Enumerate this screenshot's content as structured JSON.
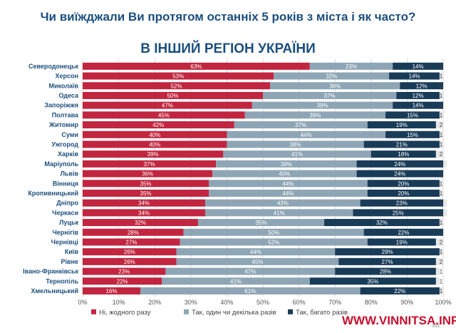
{
  "question": "Чи виїжджали Ви протягом останніх 5 років з міста і як часто?",
  "subtitle": "В ІНШИЙ РЕГІОН УКРАЇНИ",
  "watermark": "WWW.VINNITSA.INFO",
  "page_number": "391",
  "colors": {
    "never": "#c1253f",
    "once_or_few": "#8ea5b5",
    "many": "#183b58",
    "fourth": "#e6e6e6",
    "title": "#1c4f7e"
  },
  "chart_data": {
    "type": "bar",
    "orientation": "horizontal",
    "stacked": true,
    "title": "В ІНШИЙ РЕГІОН УКРАЇНИ",
    "xlim": [
      0,
      100
    ],
    "x_ticks": [
      "0%",
      "10%",
      "20%",
      "30%",
      "40%",
      "50%",
      "60%",
      "70%",
      "80%",
      "90%",
      "100%"
    ],
    "legend_position": "bottom",
    "categories": [
      "Северодонецьк",
      "Херсон",
      "Миколаїв",
      "Одеса",
      "Запоріжжя",
      "Полтава",
      "Житомир",
      "Суми",
      "Ужгород",
      "Харків",
      "Маріуполь",
      "Львів",
      "Вінниця",
      "Кропивницький",
      "Дніпро",
      "Черкаси",
      "Луцьк",
      "Чернігів",
      "Чернівці",
      "Київ",
      "Рівне",
      "Івано-Франківськ",
      "Тернопіль",
      "Хмельницький"
    ],
    "series": [
      {
        "name": "Ні, жодного разу",
        "values": [
          63,
          53,
          52,
          50,
          47,
          45,
          42,
          40,
          40,
          39,
          37,
          36,
          35,
          35,
          34,
          34,
          32,
          28,
          27,
          26,
          26,
          23,
          22,
          16
        ]
      },
      {
        "name": "Так, один чи декілька разів",
        "values": [
          23,
          32,
          36,
          37,
          39,
          39,
          37,
          44,
          38,
          41,
          39,
          40,
          44,
          44,
          43,
          41,
          35,
          50,
          52,
          44,
          45,
          47,
          41,
          61
        ]
      },
      {
        "name": "Так, багато разів",
        "values": [
          14,
          14,
          12,
          12,
          14,
          15,
          19,
          15,
          21,
          18,
          24,
          24,
          20,
          20,
          23,
          25,
          32,
          22,
          19,
          29,
          27,
          28,
          35,
          22
        ]
      },
      {
        "name": "",
        "values": [
          0,
          1,
          0,
          1,
          0,
          1,
          2,
          1,
          1,
          2,
          1,
          0,
          1,
          1,
          1,
          1,
          1,
          0,
          2,
          1,
          2,
          1,
          1,
          1
        ]
      }
    ]
  }
}
